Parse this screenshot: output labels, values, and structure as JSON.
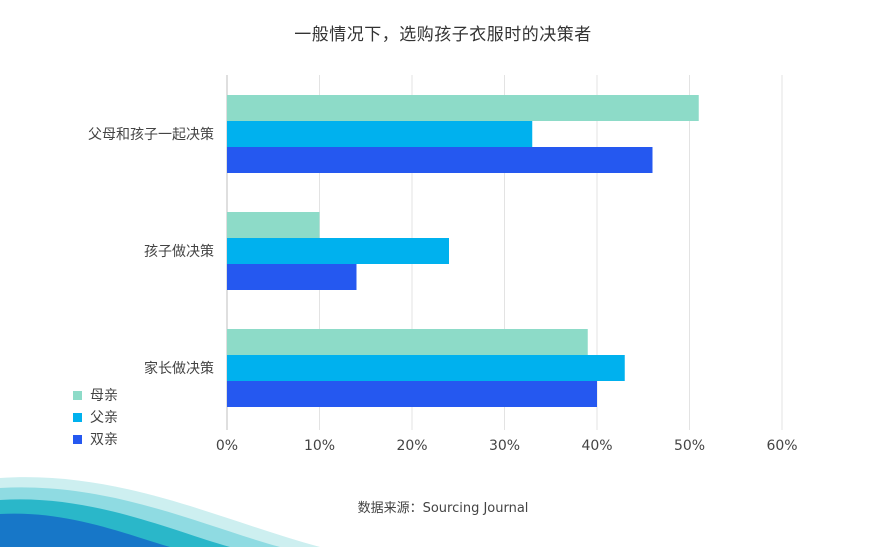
{
  "title": "一般情况下，选购孩子衣服时的决策者",
  "source": "数据来源：Sourcing Journal",
  "chart_data": {
    "type": "bar",
    "orientation": "horizontal",
    "title": "一般情况下，选购孩子衣服时的决策者",
    "categories": [
      "父母和孩子一起决策",
      "孩子做决策",
      "家长做决策"
    ],
    "series": [
      {
        "name": "母亲",
        "color": "#8ddbc8",
        "values": [
          51,
          10,
          39
        ]
      },
      {
        "name": "父亲",
        "color": "#00b1ee",
        "values": [
          33,
          24,
          43
        ]
      },
      {
        "name": "双亲",
        "color": "#2558f0",
        "values": [
          46,
          14,
          40
        ]
      }
    ],
    "xlim": [
      0,
      60
    ],
    "x_ticks": [
      "0%",
      "10%",
      "20%",
      "30%",
      "40%",
      "50%",
      "60%"
    ],
    "grid": true,
    "legend_position": "bottom-left"
  }
}
